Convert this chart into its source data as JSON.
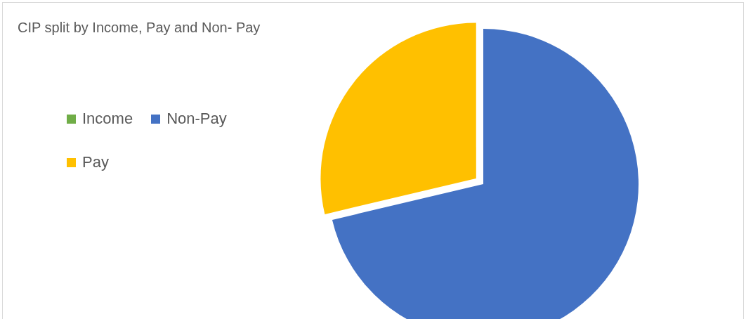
{
  "chart_data": {
    "type": "pie",
    "title": "CIP split by Income, Pay and Non- Pay",
    "categories": [
      "Income",
      "Non-Pay",
      "Pay"
    ],
    "values": [
      0,
      71.3,
      28.7
    ],
    "colors": [
      "#70ad47",
      "#4472c4",
      "#ffc000"
    ],
    "legend": "left"
  }
}
